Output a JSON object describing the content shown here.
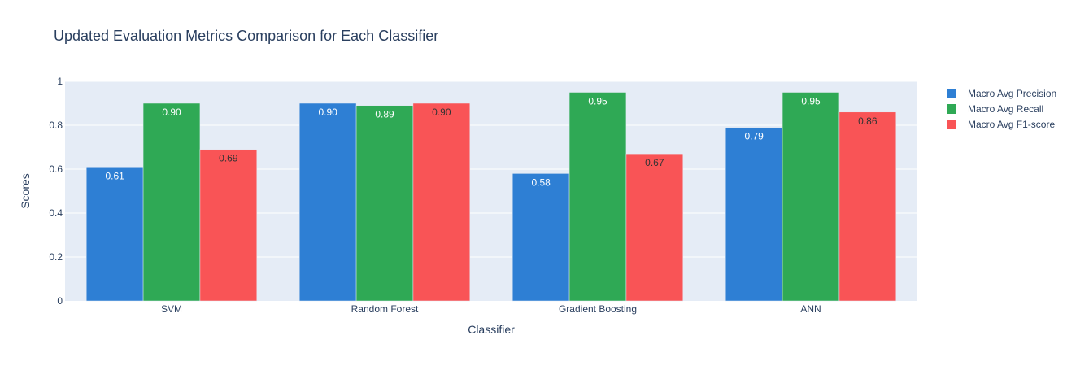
{
  "chart_data": {
    "type": "bar",
    "title": "Updated Evaluation Metrics Comparison for Each Classifier",
    "xlabel": "Classifier",
    "ylabel": "Scores",
    "ylim": [
      0,
      1
    ],
    "yticks": [
      "0",
      "0.2",
      "0.4",
      "0.6",
      "0.8",
      "1"
    ],
    "ytick_values": [
      0,
      0.2,
      0.4,
      0.6,
      0.8,
      1
    ],
    "categories": [
      "SVM",
      "Random Forest",
      "Gradient Boosting",
      "ANN"
    ],
    "series": [
      {
        "name": "Macro Avg Precision",
        "color": "#2e7fd4",
        "label_color": "#ffffff",
        "values": [
          0.61,
          0.9,
          0.58,
          0.79
        ],
        "labels": [
          "0.61",
          "0.90",
          "0.58",
          "0.79"
        ]
      },
      {
        "name": "Macro Avg Recall",
        "color": "#2fa955",
        "label_color": "#ffffff",
        "values": [
          0.9,
          0.89,
          0.95,
          0.95
        ],
        "labels": [
          "0.90",
          "0.89",
          "0.95",
          "0.95"
        ]
      },
      {
        "name": "Macro Avg F1-score",
        "color": "#f95456",
        "label_color": "#333333",
        "values": [
          0.69,
          0.9,
          0.67,
          0.86
        ],
        "labels": [
          "0.69",
          "0.90",
          "0.67",
          "0.86"
        ]
      }
    ],
    "grid": true,
    "legend_position": "top-right",
    "plot_background": "#e5ecf6"
  }
}
